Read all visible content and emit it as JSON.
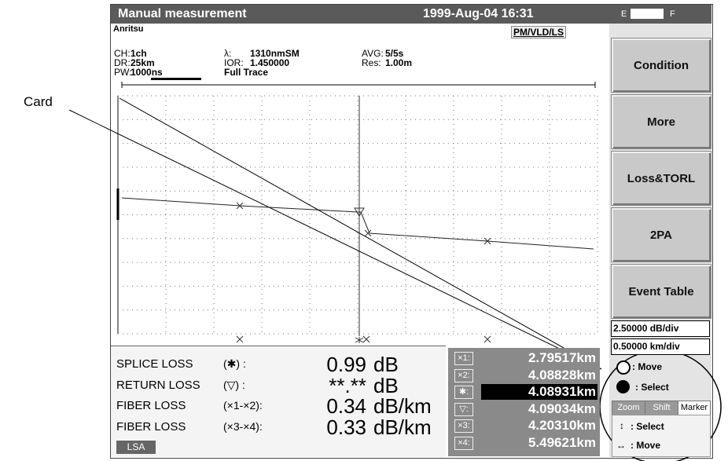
{
  "header": {
    "title": "Manual measurement",
    "datetime": "1999-Aug-04 16:31",
    "battery_empty": "E",
    "battery_full": "F"
  },
  "info": {
    "brand": "Anritsu",
    "mode": "PM/VLD/LS",
    "fields": [
      {
        "label": "CH:",
        "value": "1ch"
      },
      {
        "label": "DR:",
        "value": "25km"
      },
      {
        "label": "PW:",
        "value": "1000ns"
      },
      {
        "label": "λ:",
        "value": "1310nmSM"
      },
      {
        "label": "IOR:",
        "value": "1.450000"
      },
      {
        "label": "AVG:",
        "value": "5/5s"
      },
      {
        "label": "Res:",
        "value": "1.00m"
      }
    ],
    "full_trace": "Full Trace"
  },
  "buttons": [
    "Condition",
    "More",
    "Loss&TORL",
    "2PA",
    "Event Table"
  ],
  "scales": [
    "2.50000 dB/div",
    "0.50000 km/div"
  ],
  "controls": {
    "move": ": Move",
    "select": ": Select",
    "tabs": [
      "Zoom",
      "Shift",
      "Marker"
    ],
    "updown": ": Select",
    "leftright": ": Move"
  },
  "results": [
    {
      "label": "SPLICE LOSS",
      "symbol": "(✱) :",
      "value": "0.99",
      "unit": "dB"
    },
    {
      "label": "RETURN LOSS",
      "symbol": "(▽) :",
      "value": "**.**",
      "unit": "dB"
    },
    {
      "label": "FIBER LOSS",
      "symbol": "(×1-×2):",
      "value": "0.34",
      "unit": "dB/km"
    },
    {
      "label": "FIBER LOSS",
      "symbol": "(×3-×4):",
      "value": "0.33",
      "unit": "dB/km"
    }
  ],
  "markers": [
    {
      "label": "×1:",
      "value": "2.79517km"
    },
    {
      "label": "×2:",
      "value": "4.08828km"
    },
    {
      "label": "✱:",
      "value": "4.08931km"
    },
    {
      "label": "▽:",
      "value": "4.09034km"
    },
    {
      "label": "×3:",
      "value": "4.20310km"
    },
    {
      "label": "×4:",
      "value": "5.49621km"
    }
  ],
  "lsa": "LSA",
  "callout": "Card"
}
